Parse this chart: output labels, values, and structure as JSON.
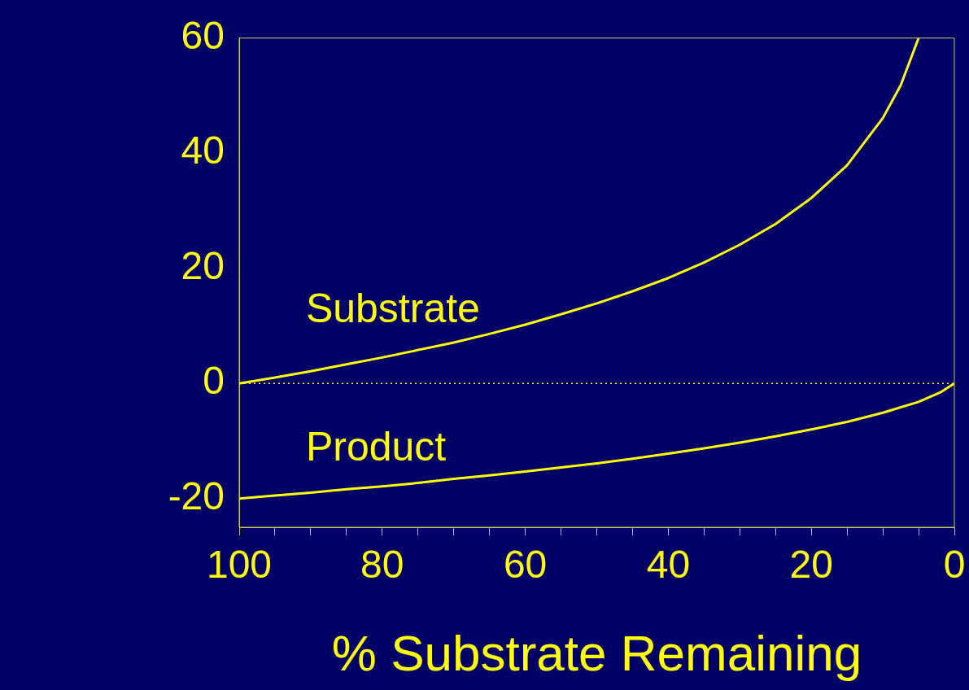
{
  "chart_data": {
    "type": "line",
    "xlabel": "% Substrate Remaining",
    "x": [
      100,
      95,
      90,
      85,
      80,
      75,
      70,
      65,
      60,
      55,
      50,
      45,
      40,
      35,
      30,
      25,
      20,
      15,
      10,
      7.5,
      5
    ],
    "series": [
      {
        "name": "Substrate",
        "color": "#ffff00",
        "values": [
          0,
          1.0,
          2.1,
          3.3,
          4.5,
          5.8,
          7.1,
          8.6,
          10.2,
          12.0,
          13.9,
          16.0,
          18.3,
          21.0,
          24.1,
          27.7,
          32.2,
          37.9,
          46.1,
          51.8,
          60
        ]
      },
      {
        "name": "Product",
        "color": "#ffff00",
        "x": [
          100,
          95,
          90,
          85,
          80,
          75,
          70,
          65,
          60,
          55,
          50,
          45,
          40,
          35,
          30,
          25,
          20,
          15,
          10,
          5,
          2,
          0
        ],
        "values": [
          -20,
          -19.5,
          -19.0,
          -18.4,
          -17.9,
          -17.3,
          -16.6,
          -16.0,
          -15.3,
          -14.6,
          -13.9,
          -13.1,
          -12.2,
          -11.3,
          -10.3,
          -9.2,
          -8.0,
          -6.7,
          -5.1,
          -3.2,
          -1.6,
          0
        ]
      }
    ],
    "xlim": [
      100,
      0
    ],
    "xticks": [
      100,
      {
        "value": 95,
        "label": null
      },
      80,
      {
        "value": 90,
        "label": null
      },
      {
        "value": 85,
        "label": null
      },
      {
        "value": 75,
        "label": null
      },
      60,
      {
        "value": 70,
        "label": null
      },
      {
        "value": 65,
        "label": null
      },
      {
        "value": 55,
        "label": null
      },
      40,
      {
        "value": 50,
        "label": null
      },
      {
        "value": 45,
        "label": null
      },
      {
        "value": 35,
        "label": null
      },
      20,
      {
        "value": 30,
        "label": null
      },
      {
        "value": 25,
        "label": null
      },
      {
        "value": 15,
        "label": null
      },
      0,
      {
        "value": 10,
        "label": null
      },
      {
        "value": 5,
        "label": null
      }
    ],
    "ylim": [
      -25,
      60
    ],
    "yticks": [
      -20,
      0,
      20,
      40,
      60
    ],
    "ref_lines": [
      {
        "axis": "y",
        "value": 0,
        "color": "#ffff00",
        "line_style": "dotted"
      }
    ],
    "grid": false,
    "legend": false,
    "marker": "none",
    "line_style": "solid"
  }
}
